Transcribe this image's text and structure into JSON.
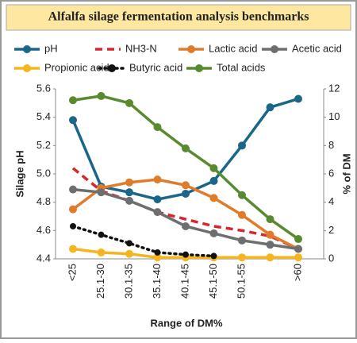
{
  "chart_data": {
    "type": "line",
    "title": "Alfalfa silage fermentation analysis benchmarks",
    "ylabel": "Silage pH",
    "y2label": "% of DM",
    "xlabel": "Range of DM%",
    "categories": [
      "<25",
      "25.1-30",
      "30.1-35",
      "35.1-40",
      "40.1-45",
      "45.1-50",
      "50.1-55",
      null,
      ">60"
    ],
    "ylim": [
      4.4,
      5.6
    ],
    "yticks": [
      4.4,
      4.6,
      4.8,
      {
        "value": 5,
        "label": "5.0"
      },
      5.2,
      5.4,
      5.6
    ],
    "y2lim": [
      0,
      12
    ],
    "y2ticks": [
      0,
      2,
      4,
      6,
      8,
      10,
      12
    ],
    "series": [
      {
        "name": "pH",
        "color": "#1b6689",
        "values": [
          5.38,
          4.91,
          4.87,
          4.82,
          4.86,
          4.95,
          5.2,
          5.47,
          5.53
        ]
      },
      {
        "name": "NH3-N",
        "color": "#d6262e",
        "axis": "y2",
        "style": "dashed",
        "markers": false,
        "values": [
          6.4,
          4.8,
          4.1,
          3.3,
          2.8,
          2.3,
          2.0,
          1.6,
          0.7
        ]
      },
      {
        "name": "Lactic acid",
        "color": "#e07b2a",
        "axis": "y2",
        "values": [
          3.5,
          5.0,
          5.4,
          5.6,
          5.2,
          4.3,
          3.1,
          1.7,
          0.7
        ]
      },
      {
        "name": "Acetic acid",
        "color": "#6d6e70",
        "axis": "y2",
        "values": [
          4.9,
          4.7,
          4.1,
          3.3,
          2.3,
          1.8,
          1.3,
          1.0,
          0.7
        ]
      },
      {
        "name": "Propionic acid",
        "color": "#f5b51e",
        "axis": "y2",
        "values": [
          0.7,
          0.45,
          0.35,
          0.1,
          0.1,
          0.1,
          0.1,
          0.1,
          0.1
        ]
      },
      {
        "name": "Butyric acid",
        "color": "#111111",
        "axis": "y2",
        "style": "dotted",
        "values": [
          2.3,
          1.7,
          1.1,
          0.45,
          0.3,
          0.2,
          null,
          null,
          null
        ]
      },
      {
        "name": "Total acids",
        "color": "#5a8a2f",
        "axis": "y2",
        "values": [
          11.2,
          11.5,
          11.0,
          9.3,
          7.8,
          6.4,
          4.5,
          2.8,
          1.4
        ]
      }
    ]
  }
}
